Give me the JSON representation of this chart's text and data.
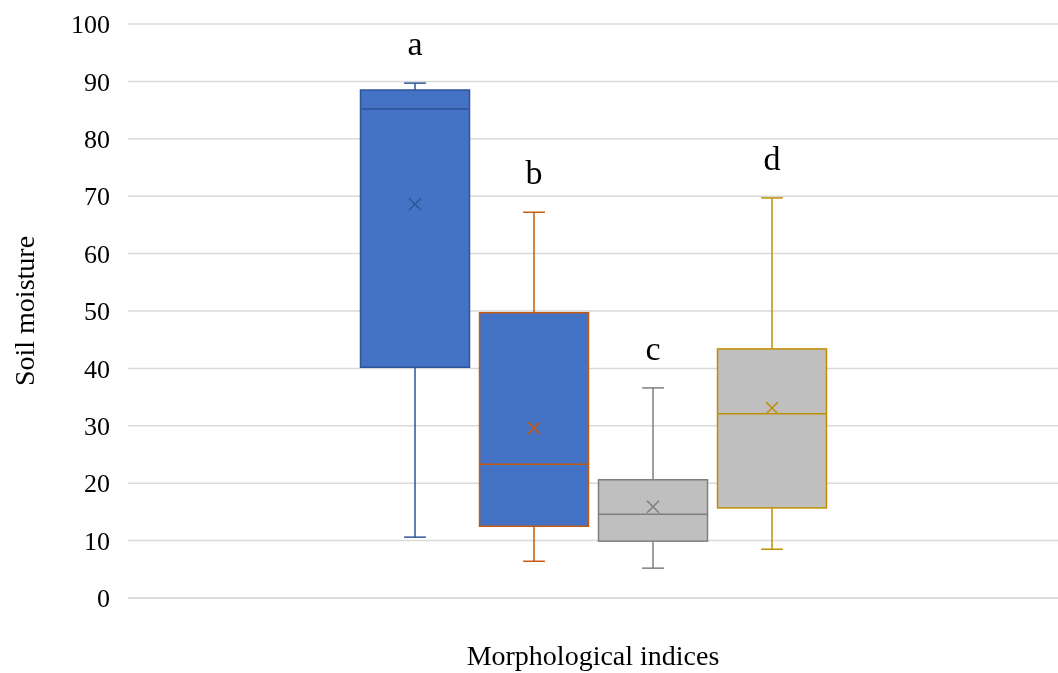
{
  "chart_data": {
    "type": "box",
    "xlabel": "Morphological indices",
    "ylabel": "Soil moisture",
    "categories": [
      null
    ],
    "ylim": [
      0,
      100
    ],
    "yticks": [
      0,
      10,
      20,
      30,
      40,
      50,
      60,
      70,
      80,
      90,
      100
    ],
    "grid": "y",
    "marker": "cross",
    "series": [
      {
        "color": "#2f5597",
        "colors": [
          "#4472c4"
        ],
        "boxes": [
          {
            "low": 10.6,
            "q1": 40.2,
            "median": 85.2,
            "q3": 88.5,
            "high": 89.7,
            "mean": 68.6
          }
        ]
      },
      {
        "color": "#c55a11",
        "colors": [
          "#4472c4"
        ],
        "boxes": [
          {
            "low": 6.4,
            "q1": 12.5,
            "median": 23.3,
            "q3": 49.7,
            "high": 67.2,
            "mean": 29.6
          }
        ]
      },
      {
        "color": "#7f7f7f",
        "colors": [
          "#bfbfbf"
        ],
        "boxes": [
          {
            "low": 5.2,
            "q1": 9.9,
            "median": 14.6,
            "q3": 20.6,
            "high": 36.6,
            "mean": 15.9
          }
        ]
      },
      {
        "color": "#bf9000",
        "colors": [
          "#bfbfbf"
        ],
        "boxes": [
          {
            "low": 8.5,
            "q1": 15.7,
            "median": 32.1,
            "q3": 43.4,
            "high": 69.7,
            "mean": 33.1
          }
        ]
      }
    ],
    "annotations": [
      "a",
      "b",
      "c",
      "d"
    ]
  }
}
